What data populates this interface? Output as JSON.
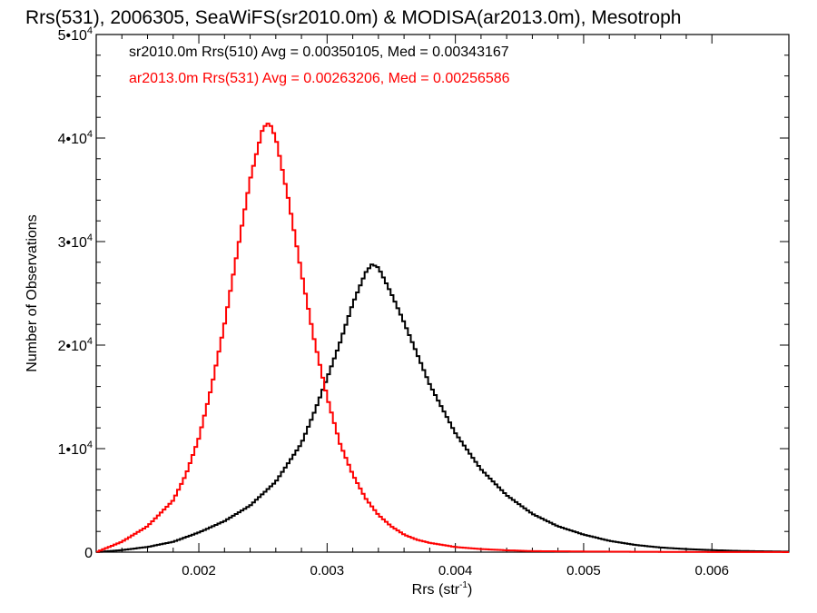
{
  "chart_data": {
    "type": "line",
    "title": "Rrs(531), 2006305, SeaWiFS(sr2010.0m) & MODISA(ar2013.0m), Mesotroph",
    "xlabel": "Rrs (str",
    "xlabel_sup": "-1",
    "xlabel_end": ")",
    "ylabel": "Number of Observations",
    "xlim": [
      0.0012,
      0.0066
    ],
    "ylim": [
      0,
      50000
    ],
    "x_ticks": [
      0.002,
      0.003,
      0.004,
      0.005,
      0.006
    ],
    "x_tick_labels": [
      "0.002",
      "0.003",
      "0.004",
      "0.005",
      "0.006"
    ],
    "y_ticks": [
      0,
      10000,
      20000,
      30000,
      40000,
      50000
    ],
    "y_tick_labels": [
      {
        "mant": "0",
        "exp": ""
      },
      {
        "mant": "1•10",
        "exp": "4"
      },
      {
        "mant": "2•10",
        "exp": "4"
      },
      {
        "mant": "3•10",
        "exp": "4"
      },
      {
        "mant": "4•10",
        "exp": "4"
      },
      {
        "mant": "5•10",
        "exp": "4"
      }
    ],
    "grid": false,
    "style": "histogram-step",
    "series": [
      {
        "name": "sr2010.0m Rrs(510)",
        "legend": "sr2010.0m Rrs(510) Avg = 0.00350105, Med = 0.00343167",
        "color": "#000000",
        "x": [
          0.0012,
          0.0014,
          0.0016,
          0.0018,
          0.002,
          0.0022,
          0.0024,
          0.0026,
          0.0028,
          0.0029,
          0.003,
          0.0031,
          0.0032,
          0.0033,
          0.00335,
          0.0034,
          0.0035,
          0.0036,
          0.0037,
          0.0038,
          0.004,
          0.0042,
          0.0044,
          0.0046,
          0.0048,
          0.005,
          0.0052,
          0.0054,
          0.0056,
          0.0058,
          0.006,
          0.0062,
          0.0064,
          0.0066
        ],
        "y": [
          0,
          200,
          500,
          1000,
          1900,
          3000,
          4500,
          6800,
          10500,
          13500,
          16800,
          20200,
          24000,
          27000,
          27800,
          27500,
          25000,
          22200,
          19200,
          16200,
          11500,
          8000,
          5500,
          3700,
          2500,
          1700,
          1100,
          700,
          450,
          300,
          200,
          120,
          80,
          50
        ]
      },
      {
        "name": "ar2013.0m Rrs(531)",
        "legend": "ar2013.0m Rrs(531) Avg = 0.00263206, Med = 0.00256586",
        "color": "#ff0000",
        "x": [
          0.0012,
          0.0014,
          0.0016,
          0.0018,
          0.0019,
          0.002,
          0.0021,
          0.0022,
          0.0023,
          0.0024,
          0.0025,
          0.00255,
          0.0026,
          0.0027,
          0.0028,
          0.0029,
          0.003,
          0.0031,
          0.0032,
          0.0033,
          0.0034,
          0.0035,
          0.0036,
          0.0037,
          0.0038,
          0.004,
          0.0042,
          0.0044,
          0.0046,
          0.005,
          0.0055,
          0.006,
          0.0066
        ],
        "y": [
          0,
          1000,
          2500,
          5000,
          7500,
          11000,
          16000,
          22000,
          29000,
          36000,
          41000,
          41500,
          40000,
          34000,
          27000,
          20500,
          15000,
          10500,
          7500,
          5200,
          3600,
          2500,
          1700,
          1200,
          900,
          500,
          300,
          180,
          100,
          60,
          30,
          15,
          5
        ]
      }
    ]
  }
}
